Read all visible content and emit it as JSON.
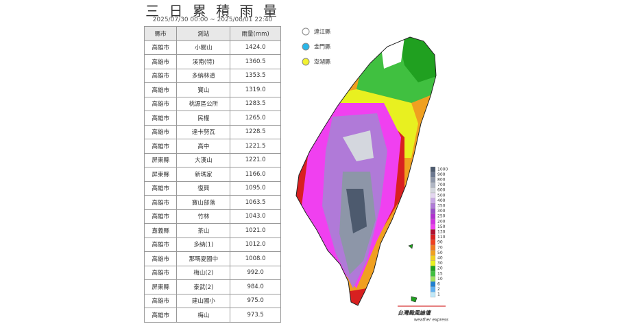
{
  "header": {
    "title": "三 日 累 積 雨 量",
    "subtitle": "2025/07/30 00:00 ~ 2025/08/01 22:40"
  },
  "table": {
    "columns": [
      "縣市",
      "測站",
      "雨量(mm)"
    ],
    "rows": [
      [
        "高雄市",
        "小關山",
        "1424.0"
      ],
      [
        "高雄市",
        "溪南(特)",
        "1360.5"
      ],
      [
        "高雄市",
        "多納林道",
        "1353.5"
      ],
      [
        "高雄市",
        "寶山",
        "1319.0"
      ],
      [
        "高雄市",
        "桃源區公所",
        "1283.5"
      ],
      [
        "高雄市",
        "民權",
        "1265.0"
      ],
      [
        "高雄市",
        "達卡努瓦",
        "1228.5"
      ],
      [
        "高雄市",
        "高中",
        "1221.5"
      ],
      [
        "屏東縣",
        "大漢山",
        "1221.0"
      ],
      [
        "屏東縣",
        "新瑪家",
        "1166.0"
      ],
      [
        "高雄市",
        "復興",
        "1095.0"
      ],
      [
        "高雄市",
        "寶山部落",
        "1063.5"
      ],
      [
        "高雄市",
        "竹林",
        "1043.0"
      ],
      [
        "嘉義縣",
        "茶山",
        "1021.0"
      ],
      [
        "高雄市",
        "多納(1)",
        "1012.0"
      ],
      [
        "高雄市",
        "那瑪夏國中",
        "1008.0"
      ],
      [
        "高雄市",
        "梅山(2)",
        "992.0"
      ],
      [
        "屏東縣",
        "泰武(2)",
        "984.0"
      ],
      [
        "高雄市",
        "建山國小",
        "975.0"
      ],
      [
        "高雄市",
        "梅山",
        "973.5"
      ]
    ]
  },
  "islands": [
    {
      "label": "連江縣",
      "color": "#ffffff"
    },
    {
      "label": "金門縣",
      "color": "#29b6e8"
    },
    {
      "label": "澎湖縣",
      "color": "#f2f230"
    }
  ],
  "scale": [
    {
      "label": "1000",
      "color": "#4d5a6e"
    },
    {
      "label": "900",
      "color": "#6c7890"
    },
    {
      "label": "800",
      "color": "#8d96a8"
    },
    {
      "label": "700",
      "color": "#b0b6c4"
    },
    {
      "label": "600",
      "color": "#d4d7de"
    },
    {
      "label": "500",
      "color": "#e4d6f0"
    },
    {
      "label": "400",
      "color": "#c9a8e6"
    },
    {
      "label": "350",
      "color": "#b07ad8"
    },
    {
      "label": "300",
      "color": "#9a4fc8"
    },
    {
      "label": "250",
      "color": "#b030d0"
    },
    {
      "label": "200",
      "color": "#d030e0"
    },
    {
      "label": "150",
      "color": "#f040f0"
    },
    {
      "label": "130",
      "color": "#b01030"
    },
    {
      "label": "110",
      "color": "#d82020"
    },
    {
      "label": "90",
      "color": "#f04020"
    },
    {
      "label": "70",
      "color": "#f07820"
    },
    {
      "label": "50",
      "color": "#f0a020"
    },
    {
      "label": "40",
      "color": "#f0d020"
    },
    {
      "label": "30",
      "color": "#e8f020"
    },
    {
      "label": "20",
      "color": "#20a020"
    },
    {
      "label": "15",
      "color": "#40c040"
    },
    {
      "label": "10",
      "color": "#a0e060"
    },
    {
      "label": "6",
      "color": "#2080d0"
    },
    {
      "label": "2",
      "color": "#60b0f0"
    },
    {
      "label": "1",
      "color": "#c0e8f8"
    }
  ],
  "logo": {
    "title": "台灣颱風論壇",
    "subtitle": "weather express"
  }
}
